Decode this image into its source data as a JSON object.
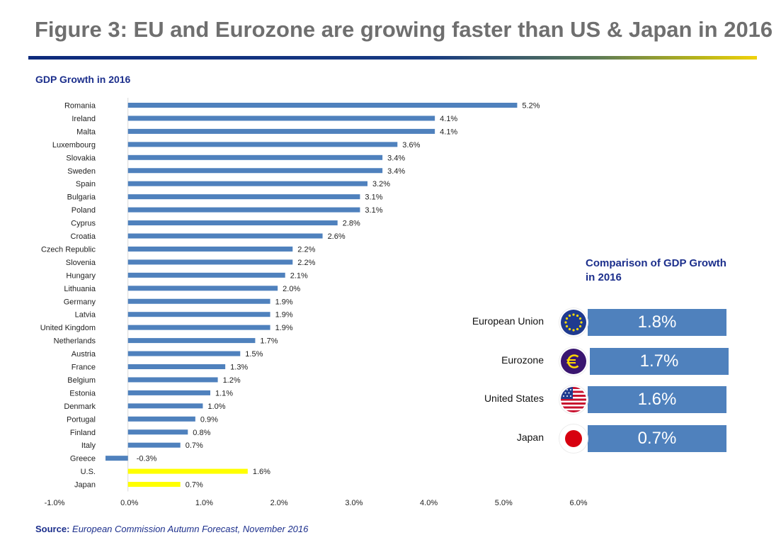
{
  "page_title": "Figure 3: EU and Eurozone are growing faster than US & Japan in 2016",
  "chart_title": "GDP Growth in 2016",
  "source": {
    "label": "Source:",
    "text": "European Commission Autumn Forecast, November 2016"
  },
  "comparison": {
    "title": "Comparison of GDP Growth in 2016",
    "items": [
      {
        "label": "European Union",
        "value": "1.8%",
        "icon": "eu-flag-icon"
      },
      {
        "label": "Eurozone",
        "value": "1.7%",
        "icon": "euro-icon"
      },
      {
        "label": "United States",
        "value": "1.6%",
        "icon": "us-flag-icon"
      },
      {
        "label": "Japan",
        "value": "0.7%",
        "icon": "japan-flag-icon"
      }
    ]
  },
  "colors": {
    "bar": "#4f81bd",
    "highlight_bar": "#ffff00",
    "title_text": "#6f6f6f",
    "accent_text": "#1c2f8c"
  },
  "chart_data": {
    "type": "bar",
    "orientation": "horizontal",
    "title": "GDP Growth in 2016",
    "xlabel": "",
    "ylabel": "",
    "xlim": [
      -1.0,
      6.0
    ],
    "xticks": [
      -1.0,
      0.0,
      1.0,
      2.0,
      3.0,
      4.0,
      5.0,
      6.0
    ],
    "xtick_labels": [
      "-1.0%",
      "0.0%",
      "1.0%",
      "2.0%",
      "3.0%",
      "4.0%",
      "5.0%",
      "6.0%"
    ],
    "categories": [
      "Romania",
      "Ireland",
      "Malta",
      "Luxembourg",
      "Slovakia",
      "Sweden",
      "Spain",
      "Bulgaria",
      "Poland",
      "Cyprus",
      "Croatia",
      "Czech Republic",
      "Slovenia",
      "Hungary",
      "Lithuania",
      "Germany",
      "Latvia",
      "United Kingdom",
      "Netherlands",
      "Austria",
      "France",
      "Belgium",
      "Estonia",
      "Denmark",
      "Portugal",
      "Finland",
      "Italy",
      "Greece",
      "U.S.",
      "Japan"
    ],
    "values": [
      5.2,
      4.1,
      4.1,
      3.6,
      3.4,
      3.4,
      3.2,
      3.1,
      3.1,
      2.8,
      2.6,
      2.2,
      2.2,
      2.1,
      2.0,
      1.9,
      1.9,
      1.9,
      1.7,
      1.5,
      1.3,
      1.2,
      1.1,
      1.0,
      0.9,
      0.8,
      0.7,
      -0.3,
      1.6,
      0.7
    ],
    "value_labels": [
      "5.2%",
      "4.1%",
      "4.1%",
      "3.6%",
      "3.4%",
      "3.4%",
      "3.2%",
      "3.1%",
      "3.1%",
      "2.8%",
      "2.6%",
      "2.2%",
      "2.2%",
      "2.1%",
      "2.0%",
      "1.9%",
      "1.9%",
      "1.9%",
      "1.7%",
      "1.5%",
      "1.3%",
      "1.2%",
      "1.1%",
      "1.0%",
      "0.9%",
      "0.8%",
      "0.7%",
      "-0.3%",
      "1.6%",
      "0.7%"
    ],
    "highlighted": [
      "U.S.",
      "Japan"
    ],
    "legend": "none",
    "grid": false
  }
}
